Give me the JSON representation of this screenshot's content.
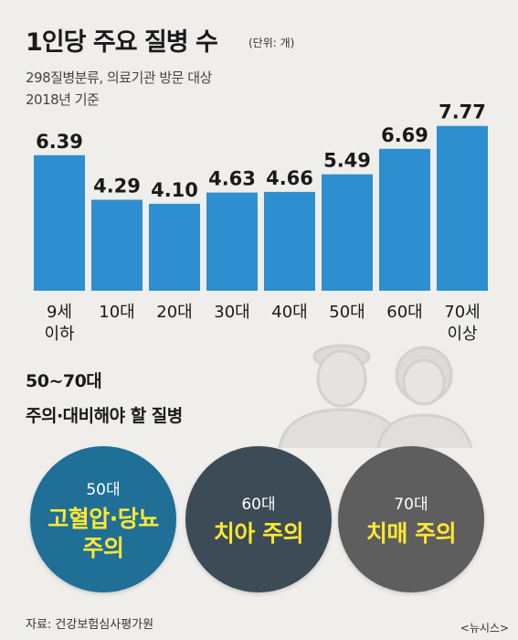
{
  "header": {
    "title": "1인당 주요 질병 수",
    "unit": "(단위: 개)",
    "subtitle_line1": "298질병분류, 의료기관 방문 대상",
    "subtitle_line2": "2018년 기준"
  },
  "chart_data": {
    "type": "bar",
    "categories": [
      [
        "9세",
        "이하"
      ],
      [
        "10대"
      ],
      [
        "20대"
      ],
      [
        "30대"
      ],
      [
        "40대"
      ],
      [
        "50대"
      ],
      [
        "60대"
      ],
      [
        "70세",
        "이상"
      ]
    ],
    "values": [
      6.39,
      4.29,
      4.1,
      4.63,
      4.66,
      5.49,
      6.69,
      7.77
    ],
    "value_labels": [
      "6.39",
      "4.29",
      "4.10",
      "4.63",
      "4.66",
      "5.49",
      "6.69",
      "7.77"
    ],
    "title": "1인당 주요 질병 수",
    "ylabel": "",
    "xlabel": "",
    "bar_color": "#2e8fd0",
    "grid": false
  },
  "section": {
    "title_line1": "50~70대",
    "title_line2": "주의·대비해야 할 질병"
  },
  "circles": [
    {
      "age": "50대",
      "text": "고혈압·당뇨 주의",
      "color": "#1f6f97"
    },
    {
      "age": "60대",
      "text": "치아 주의",
      "color": "#3c4b55"
    },
    {
      "age": "70대",
      "text": "치매 주의",
      "color": "#5e5e5e"
    }
  ],
  "footer": {
    "source": "자료: 건강보험심사평가원",
    "credit": "<뉴시스>"
  },
  "colors": {
    "background": "#efeeeb",
    "highlight_text": "#ffe733"
  },
  "illustration": {
    "icon": "elderly-couple-icon"
  }
}
